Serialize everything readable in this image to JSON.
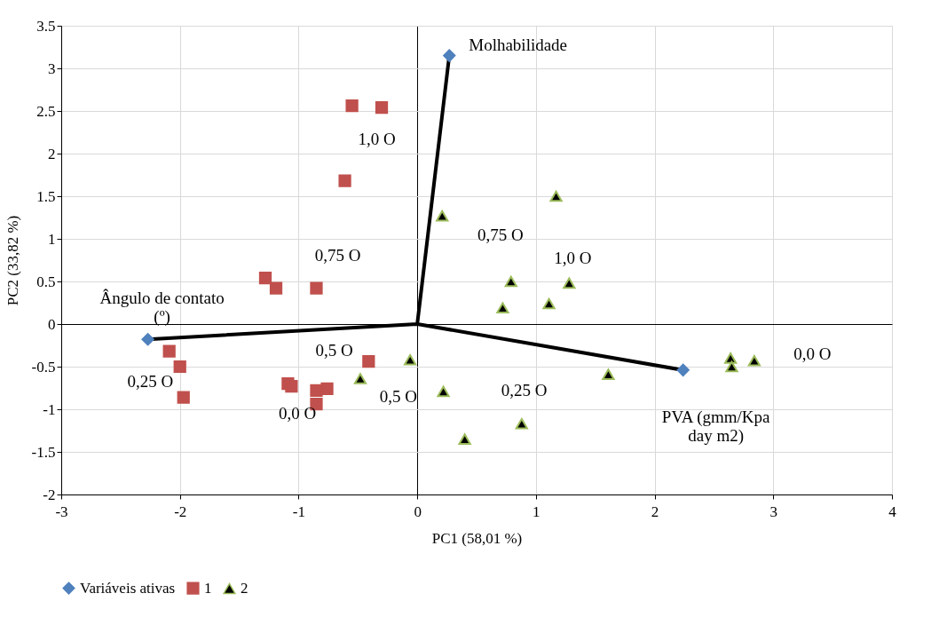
{
  "chart_data": {
    "type": "scatter",
    "xlabel": "PC1 (58,01 %)",
    "ylabel": "PC2 (33,82 %)",
    "xlim": [
      -3,
      4
    ],
    "xticks": [
      -3,
      -2,
      -1,
      0,
      1,
      2,
      3,
      4
    ],
    "ylim": [
      -2,
      3.5
    ],
    "yticks": [
      -2,
      -1.5,
      -1,
      -0.5,
      0,
      0.5,
      1,
      1.5,
      2,
      2.5,
      3,
      3.5
    ],
    "grid": true,
    "legend": "bottom",
    "series": [
      {
        "type": "line",
        "color": "#000000",
        "marker": "none",
        "x": [
          0.27,
          0,
          -2.27,
          null,
          0,
          2.24
        ],
        "values": [
          3.15,
          0,
          -0.18,
          null,
          0,
          -0.54
        ]
      },
      {
        "name": "Variáveis ativas",
        "color": "#4f81bd",
        "marker": "diamond",
        "x": [
          0.27,
          -2.27,
          2.24
        ],
        "values": [
          3.15,
          -0.18,
          -0.54
        ]
      },
      {
        "name": "1",
        "color": "#c0504d",
        "marker": "square",
        "x": [
          -0.55,
          -0.3,
          -0.61,
          -1.28,
          -1.19,
          -0.85,
          -2.09,
          -2.0,
          -1.97,
          -1.09,
          -1.06,
          -0.85,
          -0.76,
          -0.85,
          -0.41
        ],
        "values": [
          2.56,
          2.54,
          1.68,
          0.54,
          0.42,
          0.42,
          -0.32,
          -0.5,
          -0.86,
          -0.7,
          -0.73,
          -0.78,
          -0.76,
          -0.94,
          -0.44
        ]
      },
      {
        "name": "2",
        "color": "#000000",
        "marker": "triangle",
        "x": [
          0.21,
          1.17,
          0.79,
          1.28,
          0.72,
          1.11,
          -0.06,
          0.22,
          -0.48,
          0.88,
          0.4,
          1.61,
          2.64,
          2.65,
          2.84
        ],
        "values": [
          1.27,
          1.5,
          0.5,
          0.48,
          0.19,
          0.24,
          -0.42,
          -0.79,
          -0.64,
          -1.17,
          -1.35,
          -0.59,
          -0.4,
          -0.5,
          -0.43
        ]
      }
    ],
    "annotations": [
      {
        "text": "Molhabilidade",
        "x": 0.27,
        "y": 3.15
      },
      {
        "text": "Ângulo de contato\n(º)",
        "x": -2.27,
        "y": -0.18
      },
      {
        "text": "PVA (gmm/Kpa\nday m2)",
        "x": 2.24,
        "y": -0.54
      },
      "1,0 O",
      "0,75 O",
      "0,25 O",
      "0,5 O",
      "0,0 O",
      "0,5 O",
      "0,75 O",
      "1,0 O",
      "0,25 O",
      "0,0 O"
    ]
  }
}
